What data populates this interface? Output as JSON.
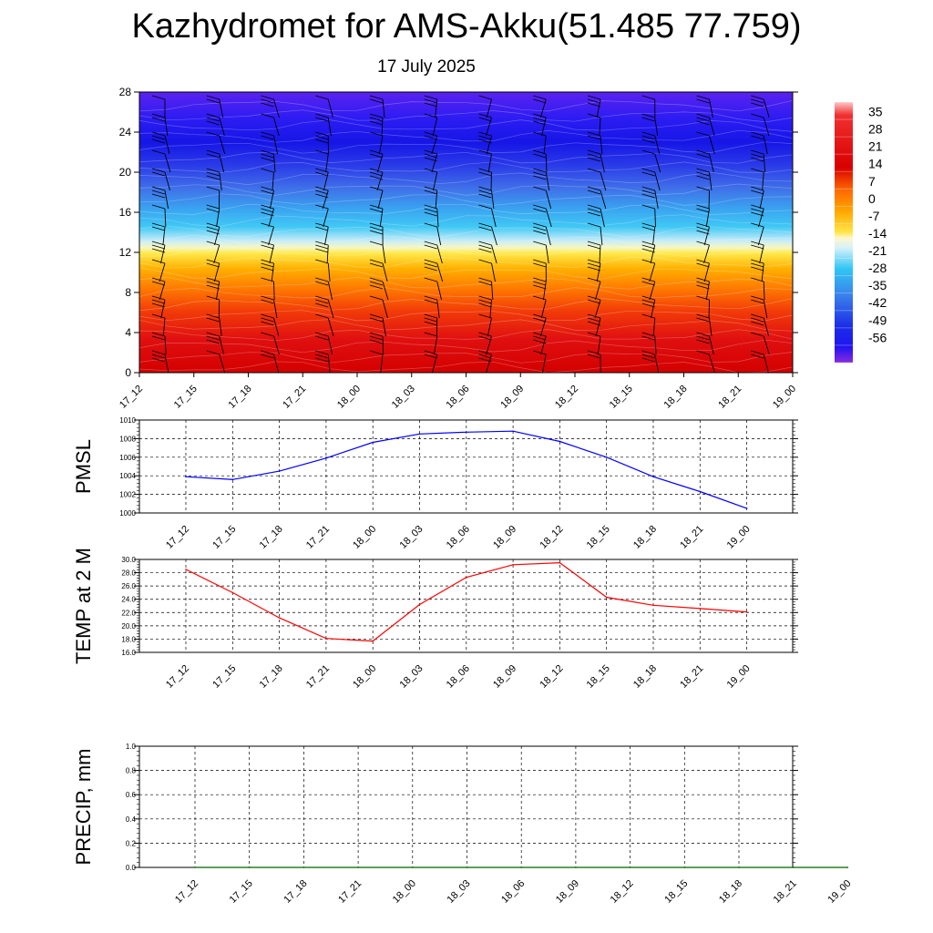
{
  "title": "Kazhydromet for AMS-Akku(51.485 77.759)",
  "subtitle": "17 July 2025",
  "time_labels": [
    "17_12",
    "17_15",
    "17_18",
    "17_21",
    "18_00",
    "18_03",
    "18_06",
    "18_09",
    "18_12",
    "18_15",
    "18_18",
    "18_21",
    "19_00"
  ],
  "colors": {
    "pmsl_line": "#0000ff",
    "temp_line": "#ff0000",
    "precip_line": "#006400",
    "grid": "#000000"
  },
  "chart_data": [
    {
      "type": "heatmap",
      "description_key": "vertical cross-section",
      "ylim": [
        0,
        28
      ],
      "yticks": [
        0,
        4,
        8,
        12,
        16,
        20,
        24,
        28
      ],
      "colorbar_labels": [
        "35",
        "28",
        "21",
        "14",
        "7",
        "0",
        "-7",
        "-14",
        "-21",
        "-28",
        "-35",
        "-42",
        "-49",
        "-56"
      ],
      "colorbar_range": [
        -63,
        42
      ],
      "legend_position": "right"
    },
    {
      "type": "line",
      "ylabel": "PMSL",
      "ylim": [
        1000,
        1010
      ],
      "yticks": [
        "1000",
        "1002",
        "1004",
        "1006",
        "1008",
        "1010"
      ],
      "series": [
        {
          "values": [
            1003.9,
            1003.6,
            1004.5,
            1005.9,
            1007.6,
            1008.5,
            1008.7,
            1008.8,
            1007.7,
            1006.0,
            1003.9,
            1002.3,
            1000.5
          ]
        }
      ]
    },
    {
      "type": "line",
      "ylabel": "TEMP at 2 M",
      "ylim": [
        16,
        30
      ],
      "yticks": [
        "16.0",
        "18.0",
        "20.0",
        "22.0",
        "24.0",
        "26.0",
        "28.0",
        "30.0"
      ],
      "series": [
        {
          "values": [
            28.5,
            25.0,
            21.2,
            18.1,
            17.7,
            23.2,
            27.3,
            29.2,
            29.5,
            24.3,
            23.1,
            22.6,
            22.1
          ]
        }
      ]
    },
    {
      "type": "line",
      "ylabel": "PRECIP, mm",
      "ylim": [
        0,
        1
      ],
      "yticks": [
        "0.0",
        "0.2",
        "0.4",
        "0.6",
        "0.8",
        "1.0"
      ],
      "series": [
        {
          "values": [
            0,
            0,
            0,
            0,
            0,
            0,
            0,
            0,
            0,
            0,
            0,
            0,
            0
          ]
        }
      ]
    }
  ]
}
